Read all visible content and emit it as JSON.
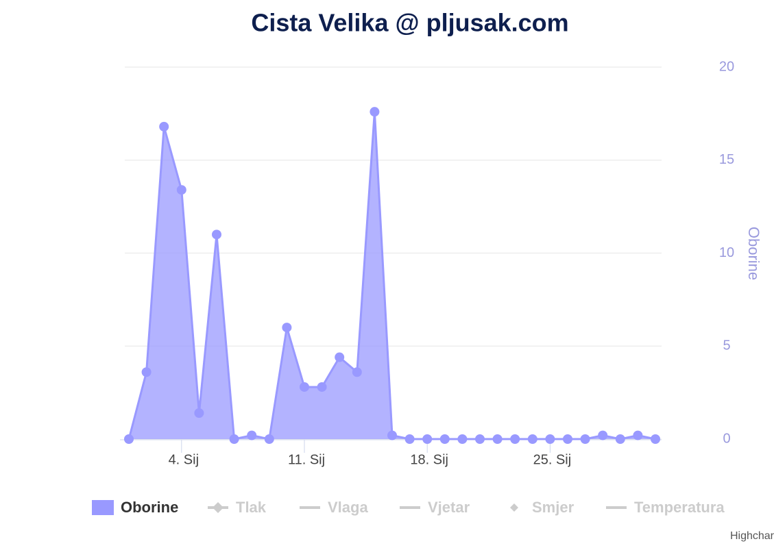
{
  "chart_data": {
    "type": "area",
    "title": "Cista Velika @ pljusak.com",
    "x": [
      1,
      2,
      3,
      4,
      5,
      6,
      7,
      8,
      9,
      10,
      11,
      12,
      13,
      14,
      15,
      16,
      17,
      18,
      19,
      20,
      21,
      22,
      23,
      24,
      25,
      26,
      27,
      28,
      29,
      30,
      31
    ],
    "xlim": [
      1,
      31
    ],
    "xticks": [
      {
        "value": 4,
        "label": "4. Sij"
      },
      {
        "value": 11,
        "label": "11. Sij"
      },
      {
        "value": 18,
        "label": "18. Sij"
      },
      {
        "value": 25,
        "label": "25. Sij"
      }
    ],
    "y_label": "Oborine",
    "ylim": [
      0,
      20
    ],
    "yticks": [
      0,
      5,
      10,
      15,
      20
    ],
    "grid": true,
    "series": [
      {
        "name": "Oborine",
        "color": "#9999ff",
        "visible": true,
        "symbol": "area",
        "values": [
          0,
          3.6,
          16.8,
          13.4,
          1.4,
          11,
          0,
          0.2,
          0,
          6,
          2.8,
          2.8,
          4.4,
          3.6,
          17.6,
          0.2,
          0,
          0,
          0,
          0,
          0,
          0,
          0,
          0,
          0,
          0,
          0,
          0.2,
          0,
          0.2,
          0
        ]
      },
      {
        "name": "Tlak",
        "color": "#cccccc",
        "visible": false,
        "symbol": "line-diamond"
      },
      {
        "name": "Vlaga",
        "color": "#cccccc",
        "visible": false,
        "symbol": "line"
      },
      {
        "name": "Vjetar",
        "color": "#cccccc",
        "visible": false,
        "symbol": "line"
      },
      {
        "name": "Smjer",
        "color": "#cccccc",
        "visible": false,
        "symbol": "diamond"
      },
      {
        "name": "Temperatura",
        "color": "#cccccc",
        "visible": false,
        "symbol": "line"
      }
    ],
    "credits": "Highchar"
  }
}
